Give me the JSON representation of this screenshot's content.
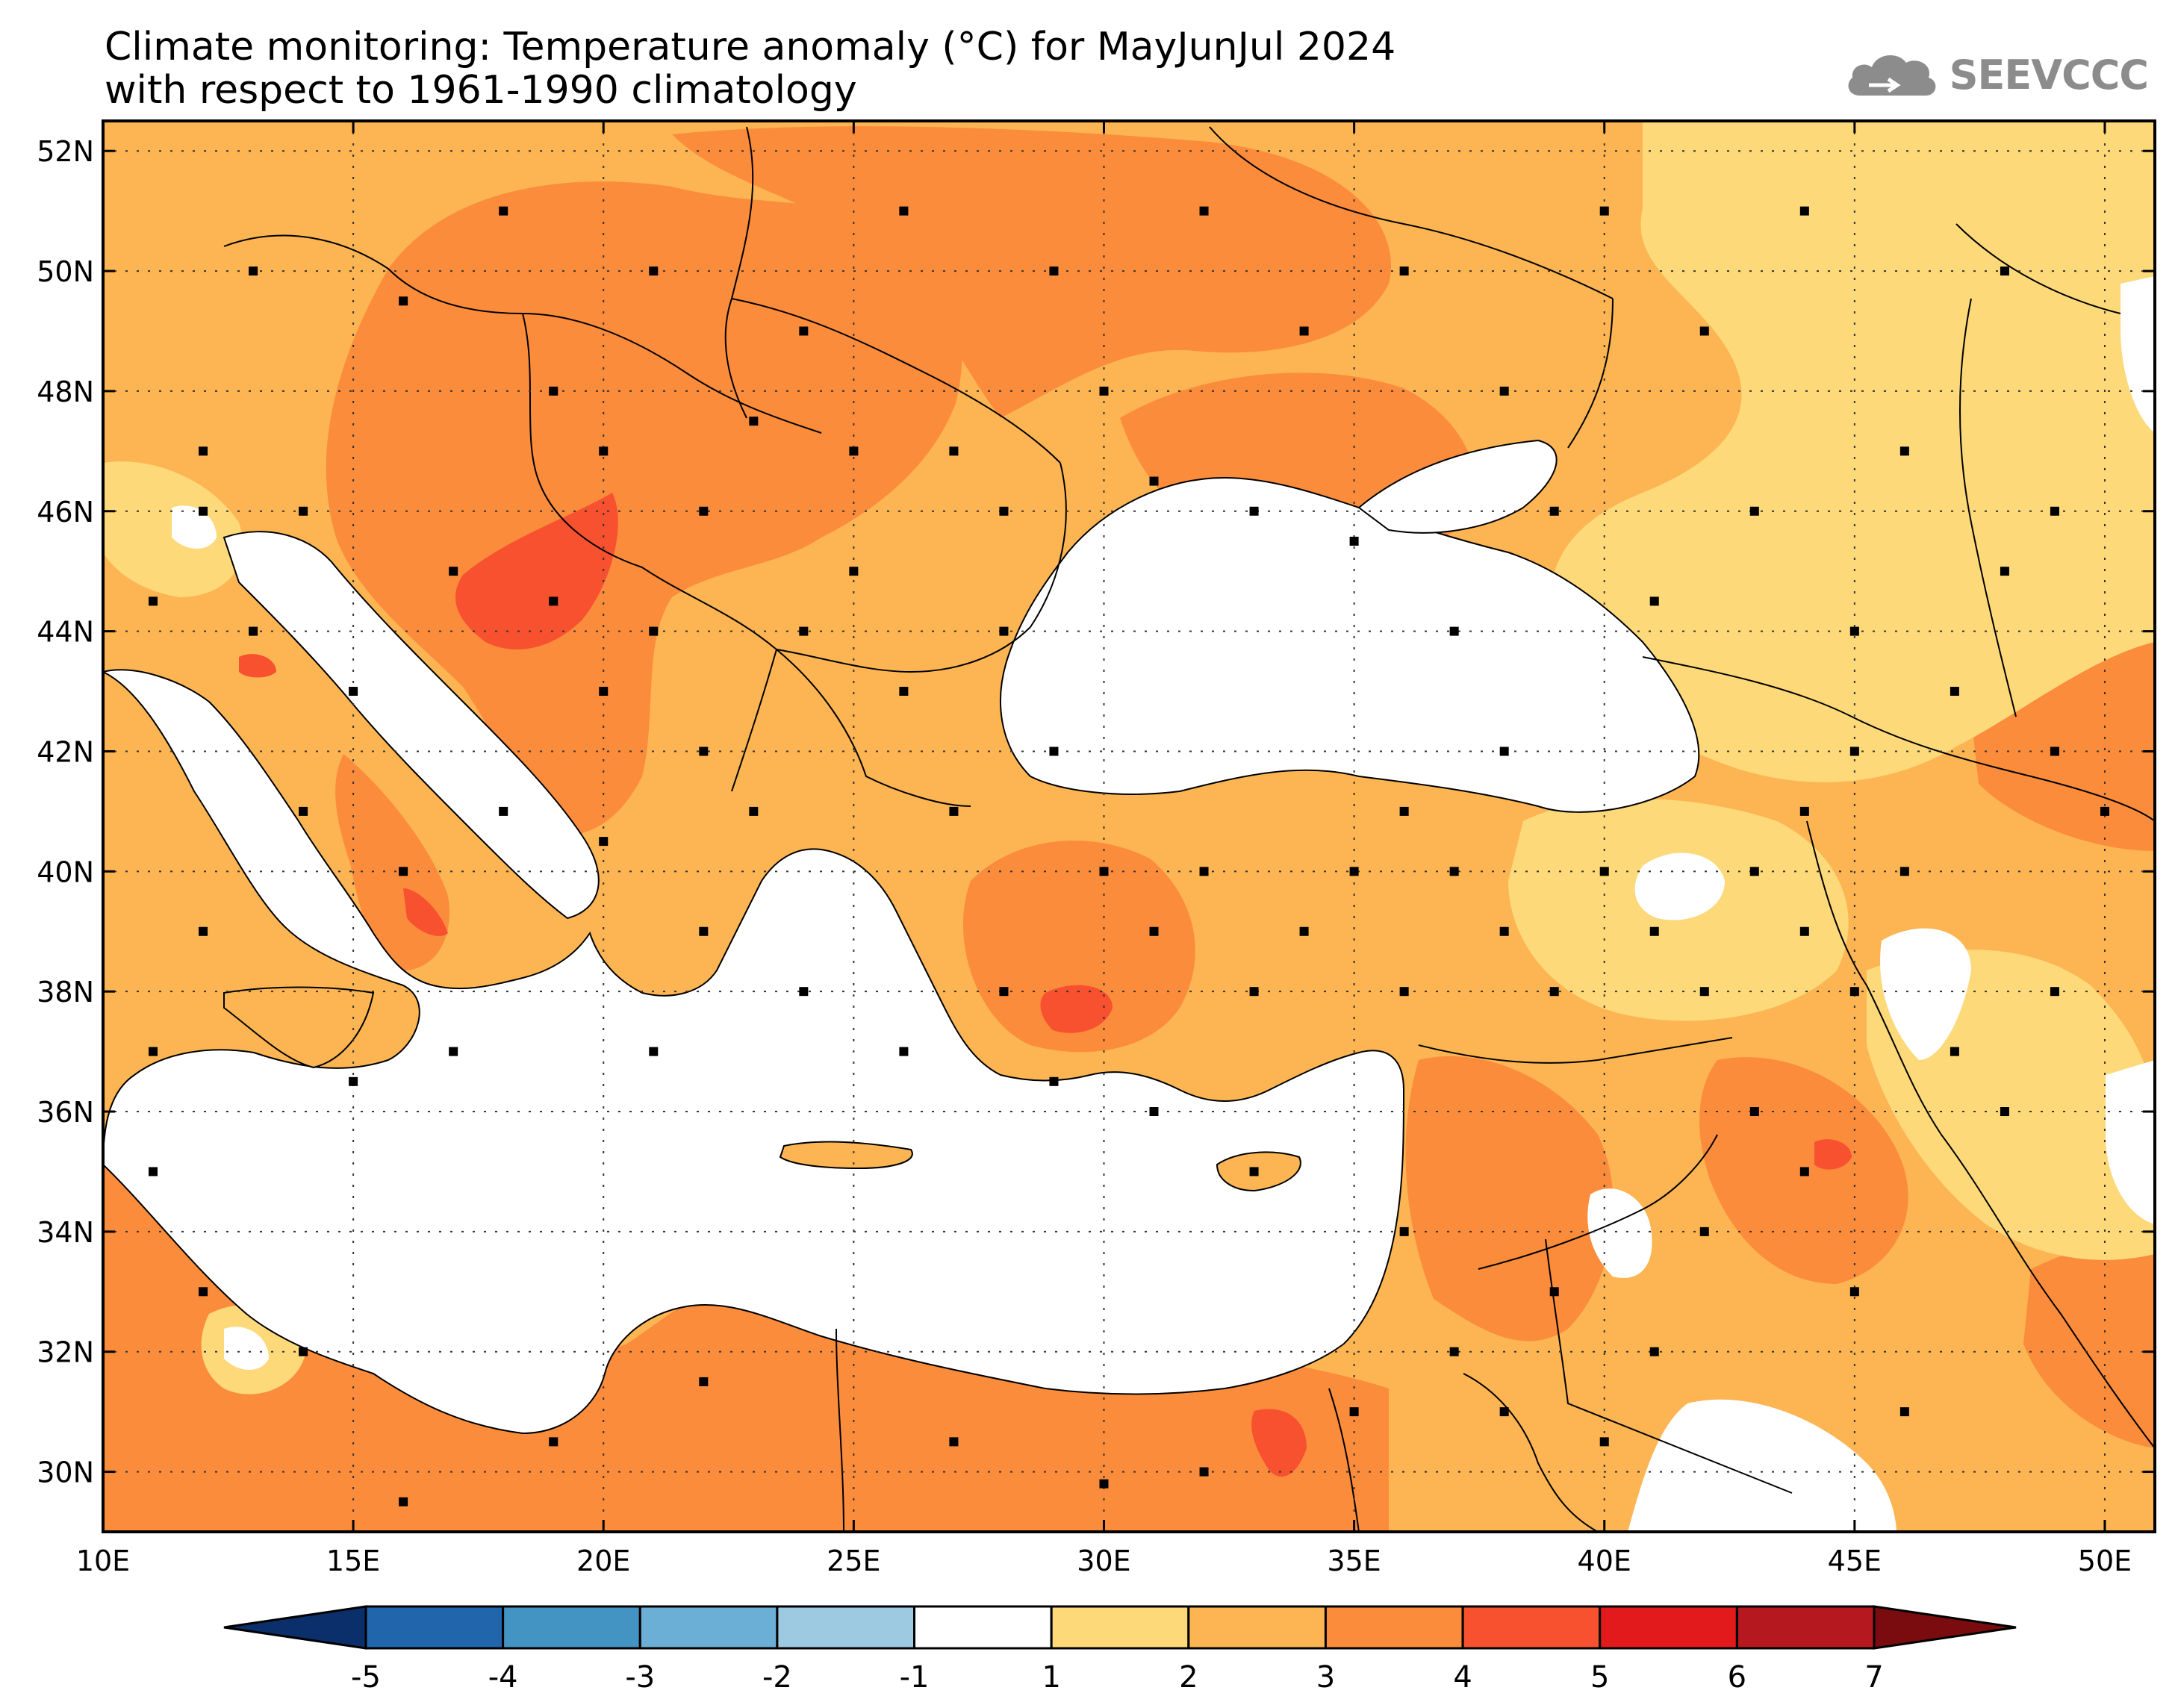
{
  "title": {
    "line1": "Climate monitoring: Temperature anomaly (°C) for MayJunJul 2024",
    "line2": "with respect to 1961-1990 climatology"
  },
  "logo": {
    "text": "SEEVCCC",
    "icon": "cloud-icon"
  },
  "map": {
    "lon_range": [
      10,
      51
    ],
    "lat_range": [
      29,
      52.5
    ],
    "lon_ticks": [
      {
        "value": 10,
        "label": "10E"
      },
      {
        "value": 15,
        "label": "15E"
      },
      {
        "value": 20,
        "label": "20E"
      },
      {
        "value": 25,
        "label": "25E"
      },
      {
        "value": 30,
        "label": "30E"
      },
      {
        "value": 35,
        "label": "35E"
      },
      {
        "value": 40,
        "label": "40E"
      },
      {
        "value": 45,
        "label": "45E"
      },
      {
        "value": 50,
        "label": "50E"
      }
    ],
    "lat_ticks": [
      {
        "value": 30,
        "label": "30N"
      },
      {
        "value": 32,
        "label": "32N"
      },
      {
        "value": 34,
        "label": "34N"
      },
      {
        "value": 36,
        "label": "36N"
      },
      {
        "value": 38,
        "label": "38N"
      },
      {
        "value": 40,
        "label": "40N"
      },
      {
        "value": 42,
        "label": "42N"
      },
      {
        "value": 44,
        "label": "44N"
      },
      {
        "value": 46,
        "label": "46N"
      },
      {
        "value": 48,
        "label": "48N"
      },
      {
        "value": 50,
        "label": "50N"
      },
      {
        "value": 52,
        "label": "52N"
      }
    ],
    "grid": "dotted"
  },
  "colorbar": {
    "segments": [
      {
        "from": -6,
        "to": -5,
        "color": "#0a2f6b"
      },
      {
        "from": -5,
        "to": -4,
        "color": "#2166ac"
      },
      {
        "from": -4,
        "to": -3,
        "color": "#4393c3"
      },
      {
        "from": -3,
        "to": -2,
        "color": "#6baed6"
      },
      {
        "from": -2,
        "to": -1,
        "color": "#9ecae1"
      },
      {
        "from": -1,
        "to": 1,
        "color": "#ffffff"
      },
      {
        "from": 1,
        "to": 2,
        "color": "#fdd97a"
      },
      {
        "from": 2,
        "to": 3,
        "color": "#fcb552"
      },
      {
        "from": 3,
        "to": 4,
        "color": "#fb8c3c"
      },
      {
        "from": 4,
        "to": 5,
        "color": "#f7512f"
      },
      {
        "from": 5,
        "to": 6,
        "color": "#e31a1c"
      },
      {
        "from": 6,
        "to": 7,
        "color": "#b5181e"
      },
      {
        "from": 7,
        "to": 8,
        "color": "#7a0c10"
      }
    ],
    "labels": [
      "-5",
      "-4",
      "-3",
      "-2",
      "-1",
      "1",
      "2",
      "3",
      "4",
      "5",
      "6",
      "7"
    ]
  }
}
